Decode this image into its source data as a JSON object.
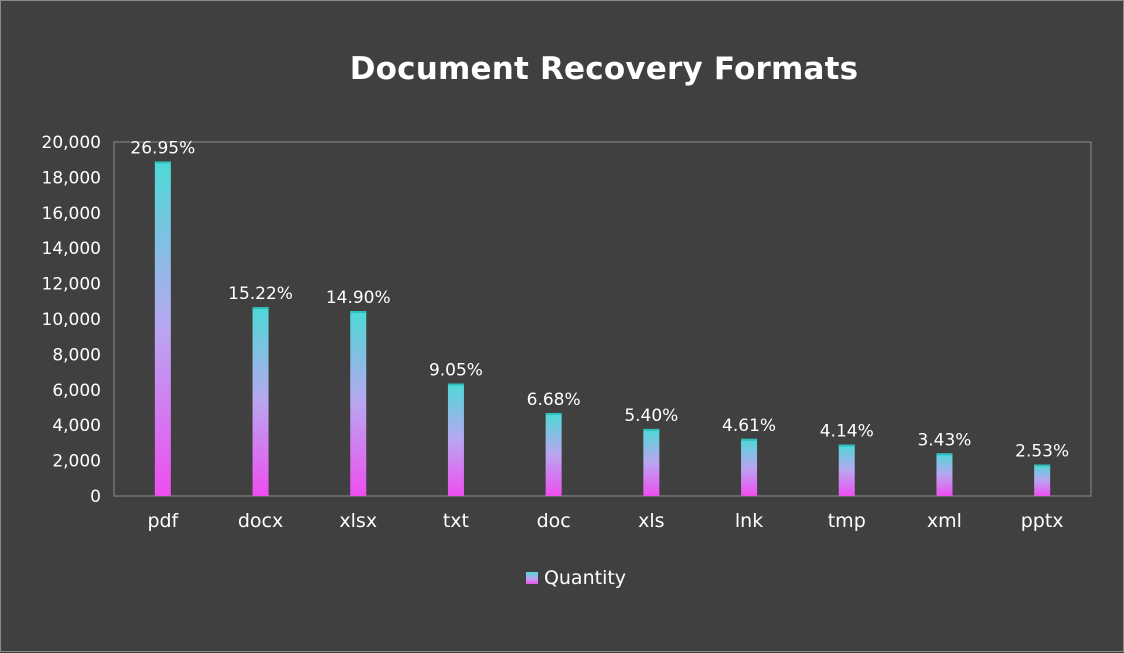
{
  "chart_data": {
    "type": "bar",
    "title": "Document Recovery Formats",
    "categories": [
      "pdf",
      "docx",
      "xlsx",
      "txt",
      "doc",
      "xls",
      "lnk",
      "tmp",
      "xml",
      "pptx"
    ],
    "series": [
      {
        "name": "Quantity",
        "values": [
          18900,
          10670,
          10450,
          6350,
          4690,
          3790,
          3230,
          2900,
          2410,
          1780
        ],
        "labels": [
          "26.95%",
          "15.22%",
          "14.90%",
          "9.05%",
          "6.68%",
          "5.40%",
          "4.61%",
          "4.14%",
          "3.43%",
          "2.53%"
        ]
      }
    ],
    "ylim": [
      0,
      20000
    ],
    "yticks": [
      "0",
      "2,000",
      "4,000",
      "6,000",
      "8,000",
      "10,000",
      "12,000",
      "14,000",
      "16,000",
      "18,000",
      "20,000"
    ],
    "grid": false,
    "legend_position": "bottom",
    "colors": {
      "background": "#404040",
      "bar_top": "#4dd9d6",
      "bar_mid": "#b9a6f0",
      "bar_bottom": "#ee4ef0",
      "text": "#ffffff",
      "axis": "#8c8c8c"
    }
  }
}
